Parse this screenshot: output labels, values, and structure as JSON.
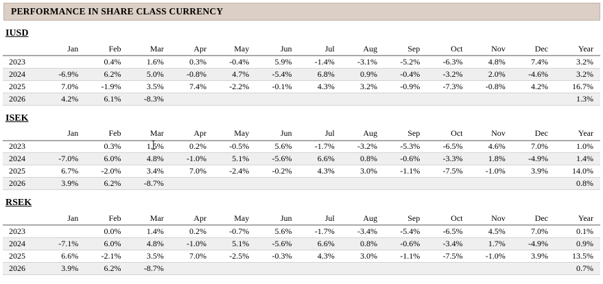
{
  "title": "PERFORMANCE IN SHARE CLASS CURRENCY",
  "columns": [
    "Jan",
    "Feb",
    "Mar",
    "Apr",
    "May",
    "Jun",
    "Jul",
    "Aug",
    "Sep",
    "Oct",
    "Nov",
    "Dec",
    "Year"
  ],
  "sections": [
    {
      "name": "IUSD",
      "rows": [
        {
          "year": "2023",
          "values": [
            "",
            "0.4%",
            "1.6%",
            "0.3%",
            "-0.4%",
            "5.9%",
            "-1.4%",
            "-3.1%",
            "-5.2%",
            "-6.3%",
            "4.8%",
            "7.4%",
            "3.2%"
          ]
        },
        {
          "year": "2024",
          "values": [
            "-6.9%",
            "6.2%",
            "5.0%",
            "-0.8%",
            "4.7%",
            "-5.4%",
            "6.8%",
            "0.9%",
            "-0.4%",
            "-3.2%",
            "2.0%",
            "-4.6%",
            "3.2%"
          ]
        },
        {
          "year": "2025",
          "values": [
            "7.0%",
            "-1.9%",
            "3.5%",
            "7.4%",
            "-2.2%",
            "-0.1%",
            "4.3%",
            "3.2%",
            "-0.9%",
            "-7.3%",
            "-0.8%",
            "4.2%",
            "16.7%"
          ]
        },
        {
          "year": "2026",
          "values": [
            "4.2%",
            "6.1%",
            "-8.3%",
            "",
            "",
            "",
            "",
            "",
            "",
            "",
            "",
            "",
            "1.3%"
          ]
        }
      ]
    },
    {
      "name": "ISEK",
      "rows": [
        {
          "year": "2023",
          "values": [
            "",
            "0.3%",
            "1.5%",
            "0.2%",
            "-0.5%",
            "5.6%",
            "-1.7%",
            "-3.2%",
            "-5.3%",
            "-6.5%",
            "4.6%",
            "7.0%",
            "1.0%"
          ]
        },
        {
          "year": "2024",
          "values": [
            "-7.0%",
            "6.0%",
            "4.8%",
            "-1.0%",
            "5.1%",
            "-5.6%",
            "6.6%",
            "0.8%",
            "-0.6%",
            "-3.3%",
            "1.8%",
            "-4.9%",
            "1.4%"
          ]
        },
        {
          "year": "2025",
          "values": [
            "6.7%",
            "-2.0%",
            "3.4%",
            "7.0%",
            "-2.4%",
            "-0.2%",
            "4.3%",
            "3.0%",
            "-1.1%",
            "-7.5%",
            "-1.0%",
            "3.9%",
            "14.0%"
          ]
        },
        {
          "year": "2026",
          "values": [
            "3.9%",
            "6.2%",
            "-8.7%",
            "",
            "",
            "",
            "",
            "",
            "",
            "",
            "",
            "",
            "0.8%"
          ]
        }
      ]
    },
    {
      "name": "RSEK",
      "rows": [
        {
          "year": "2023",
          "values": [
            "",
            "0.0%",
            "1.4%",
            "0.2%",
            "-0.7%",
            "5.6%",
            "-1.7%",
            "-3.4%",
            "-5.4%",
            "-6.5%",
            "4.5%",
            "7.0%",
            "0.1%"
          ]
        },
        {
          "year": "2024",
          "values": [
            "-7.1%",
            "6.0%",
            "4.8%",
            "-1.0%",
            "5.1%",
            "-5.6%",
            "6.6%",
            "0.8%",
            "-0.6%",
            "-3.4%",
            "1.7%",
            "-4.9%",
            "0.9%"
          ]
        },
        {
          "year": "2025",
          "values": [
            "6.6%",
            "-2.1%",
            "3.5%",
            "7.0%",
            "-2.5%",
            "-0.3%",
            "4.3%",
            "3.0%",
            "-1.1%",
            "-7.5%",
            "-1.0%",
            "3.9%",
            "13.5%"
          ]
        },
        {
          "year": "2026",
          "values": [
            "3.9%",
            "6.2%",
            "-8.7%",
            "",
            "",
            "",
            "",
            "",
            "",
            "",
            "",
            "",
            "0.7%"
          ]
        }
      ]
    }
  ],
  "colors": {
    "title_bar_bg": "#dccfc5",
    "title_bar_border": "#c2b1a7",
    "row_alt_bg": "#efefef",
    "row_separator": "#d4d4d4",
    "header_rule": "#a9a9a9"
  }
}
